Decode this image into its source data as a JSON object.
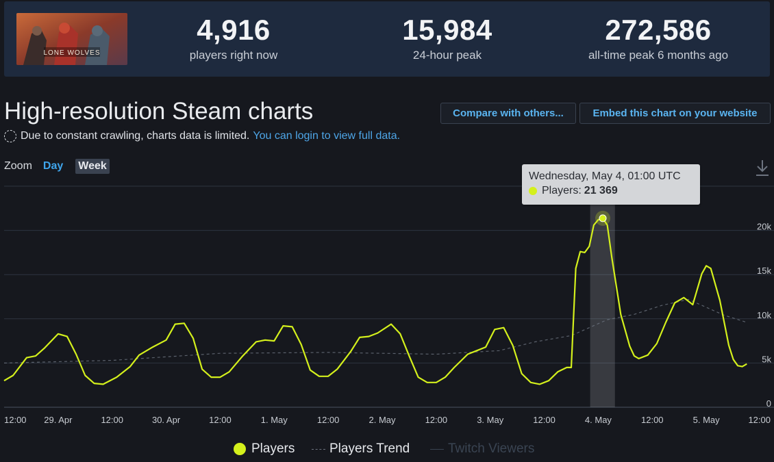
{
  "header": {
    "game_logo_text": "LONE WOLVES",
    "stats": [
      {
        "value": "4,916",
        "label": "players right now"
      },
      {
        "value": "15,984",
        "label": "24-hour peak"
      },
      {
        "value": "272,586",
        "label": "all-time peak 6 months ago"
      }
    ]
  },
  "page": {
    "title": "High-resolution Steam charts",
    "notice_text": "Due to constant crawling, charts data is limited.",
    "notice_link": "You can login to view full data.",
    "compare_button": "Compare with others...",
    "embed_button": "Embed this chart on your website"
  },
  "zoom": {
    "label": "Zoom",
    "day": "Day",
    "week": "Week"
  },
  "tooltip": {
    "date": "Wednesday, May 4, 01:00 UTC",
    "series": "Players:",
    "value": "21 369"
  },
  "legend": {
    "players": "Players",
    "trend": "Players Trend",
    "twitch": "Twitch Viewers"
  },
  "colors": {
    "players": "#d4f01c",
    "trend": "#6d7480",
    "twitch": "#3a4452",
    "accent": "#3fa5ec"
  },
  "icons": {
    "download": "download-icon",
    "notice": "dashed-circle-icon"
  },
  "chart_data": {
    "type": "line",
    "x_unit": "hours since Apr 28 12:00 UTC",
    "xlim": [
      0,
      180
    ],
    "ylim": [
      0,
      25000
    ],
    "yticks": [
      {
        "v": 0,
        "label": "0"
      },
      {
        "v": 5000,
        "label": "5k"
      },
      {
        "v": 10000,
        "label": "10k"
      },
      {
        "v": 15000,
        "label": "15k"
      },
      {
        "v": 20000,
        "label": "20k"
      }
    ],
    "xticks": [
      {
        "t": 0,
        "label": "12:00"
      },
      {
        "t": 12,
        "label": "29. Apr"
      },
      {
        "t": 24,
        "label": "12:00"
      },
      {
        "t": 36,
        "label": "30. Apr"
      },
      {
        "t": 48,
        "label": "12:00"
      },
      {
        "t": 60,
        "label": "1. May"
      },
      {
        "t": 72,
        "label": "12:00"
      },
      {
        "t": 84,
        "label": "2. May"
      },
      {
        "t": 96,
        "label": "12:00"
      },
      {
        "t": 108,
        "label": "3. May"
      },
      {
        "t": 120,
        "label": "12:00"
      },
      {
        "t": 132,
        "label": "4. May"
      },
      {
        "t": 144,
        "label": "12:00"
      },
      {
        "t": 156,
        "label": "5. May"
      },
      {
        "t": 168,
        "label": "12:00"
      }
    ],
    "highlight": {
      "t": 133,
      "value": 21369,
      "band": [
        130.2,
        135.7
      ]
    },
    "series": [
      {
        "name": "Players",
        "points": [
          [
            0,
            3000
          ],
          [
            2,
            3600
          ],
          [
            5,
            5600
          ],
          [
            7,
            5800
          ],
          [
            9,
            6700
          ],
          [
            12,
            8300
          ],
          [
            14,
            8000
          ],
          [
            16,
            6000
          ],
          [
            18,
            3600
          ],
          [
            20,
            2700
          ],
          [
            22,
            2600
          ],
          [
            25,
            3400
          ],
          [
            28,
            4600
          ],
          [
            30,
            5900
          ],
          [
            33,
            6800
          ],
          [
            36,
            7600
          ],
          [
            38,
            9400
          ],
          [
            40,
            9500
          ],
          [
            42,
            7800
          ],
          [
            44,
            4300
          ],
          [
            46,
            3400
          ],
          [
            48,
            3400
          ],
          [
            50,
            4000
          ],
          [
            53,
            5800
          ],
          [
            56,
            7400
          ],
          [
            58,
            7600
          ],
          [
            60,
            7500
          ],
          [
            62,
            9200
          ],
          [
            64,
            9100
          ],
          [
            66,
            7100
          ],
          [
            68,
            4200
          ],
          [
            70,
            3500
          ],
          [
            72,
            3500
          ],
          [
            74,
            4300
          ],
          [
            77,
            6300
          ],
          [
            79,
            7900
          ],
          [
            81,
            8000
          ],
          [
            83,
            8400
          ],
          [
            86,
            9400
          ],
          [
            88,
            8300
          ],
          [
            90,
            5800
          ],
          [
            92,
            3400
          ],
          [
            94,
            2800
          ],
          [
            96,
            2800
          ],
          [
            98,
            3400
          ],
          [
            100,
            4500
          ],
          [
            103,
            6000
          ],
          [
            105,
            6400
          ],
          [
            107,
            6800
          ],
          [
            109,
            8800
          ],
          [
            111,
            9000
          ],
          [
            113,
            7000
          ],
          [
            115,
            3800
          ],
          [
            117,
            2800
          ],
          [
            119,
            2600
          ],
          [
            121,
            3000
          ],
          [
            123,
            4000
          ],
          [
            125,
            4500
          ],
          [
            126,
            4500
          ],
          [
            127,
            15700
          ],
          [
            128,
            17600
          ],
          [
            129,
            17500
          ],
          [
            130,
            18200
          ],
          [
            131,
            20600
          ],
          [
            132,
            21200
          ],
          [
            133,
            21369
          ],
          [
            134,
            20600
          ],
          [
            135,
            17000
          ],
          [
            137,
            10500
          ],
          [
            139,
            6900
          ],
          [
            140,
            5800
          ],
          [
            141,
            5500
          ],
          [
            143,
            5900
          ],
          [
            145,
            7200
          ],
          [
            147,
            9600
          ],
          [
            149,
            11800
          ],
          [
            151,
            12400
          ],
          [
            153,
            11600
          ],
          [
            155,
            15100
          ],
          [
            156,
            16000
          ],
          [
            157,
            15700
          ],
          [
            159,
            12100
          ],
          [
            161,
            7000
          ],
          [
            162,
            5400
          ],
          [
            163,
            4700
          ],
          [
            164,
            4600
          ],
          [
            165,
            4900
          ]
        ]
      },
      {
        "name": "Players Trend",
        "points": [
          [
            0,
            5000
          ],
          [
            24,
            5300
          ],
          [
            48,
            6100
          ],
          [
            72,
            6200
          ],
          [
            96,
            6000
          ],
          [
            110,
            6400
          ],
          [
            118,
            7400
          ],
          [
            126,
            8100
          ],
          [
            134,
            9900
          ],
          [
            140,
            10500
          ],
          [
            146,
            11500
          ],
          [
            152,
            12200
          ],
          [
            160,
            10400
          ],
          [
            165,
            9600
          ]
        ]
      }
    ]
  }
}
